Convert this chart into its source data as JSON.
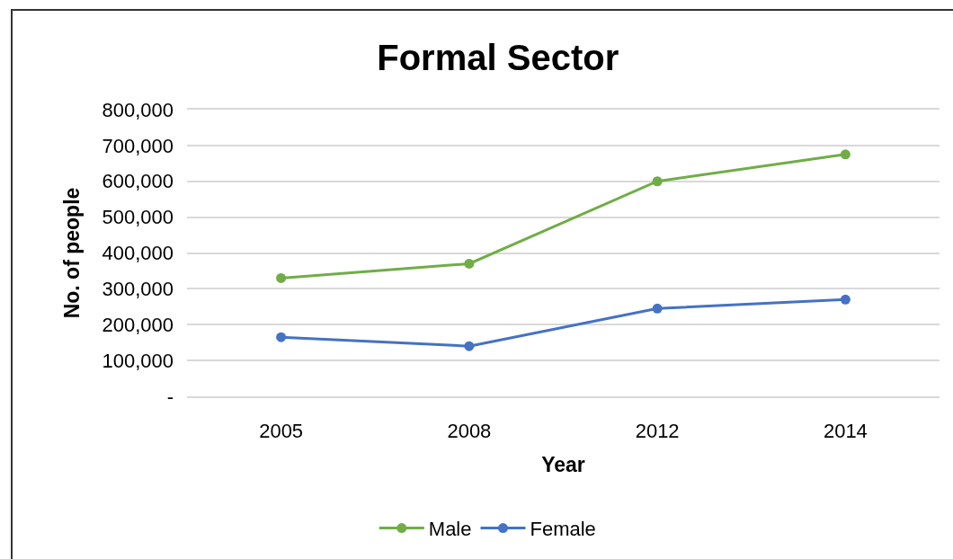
{
  "chart_data": {
    "type": "line",
    "title": "Formal Sector",
    "xlabel": "Year",
    "ylabel": "No. of people",
    "categories": [
      "2005",
      "2008",
      "2012",
      "2014"
    ],
    "series": [
      {
        "name": "Male",
        "color": "#70ad47",
        "values": [
          330000,
          370000,
          600000,
          675000
        ]
      },
      {
        "name": "Female",
        "color": "#4472c4",
        "values": [
          165000,
          140000,
          245000,
          270000
        ]
      }
    ],
    "ylim": [
      0,
      800000
    ],
    "yticks": [
      {
        "value": 0,
        "label": "-"
      },
      {
        "value": 100000,
        "label": "100,000"
      },
      {
        "value": 200000,
        "label": "200,000"
      },
      {
        "value": 300000,
        "label": "300,000"
      },
      {
        "value": 400000,
        "label": "400,000"
      },
      {
        "value": 500000,
        "label": "500,000"
      },
      {
        "value": 600000,
        "label": "600,000"
      },
      {
        "value": 700000,
        "label": "700,000"
      },
      {
        "value": 800000,
        "label": "800,000"
      }
    ],
    "grid": "y",
    "legend": "bottom",
    "marker": "circle",
    "line_style": "solid"
  }
}
